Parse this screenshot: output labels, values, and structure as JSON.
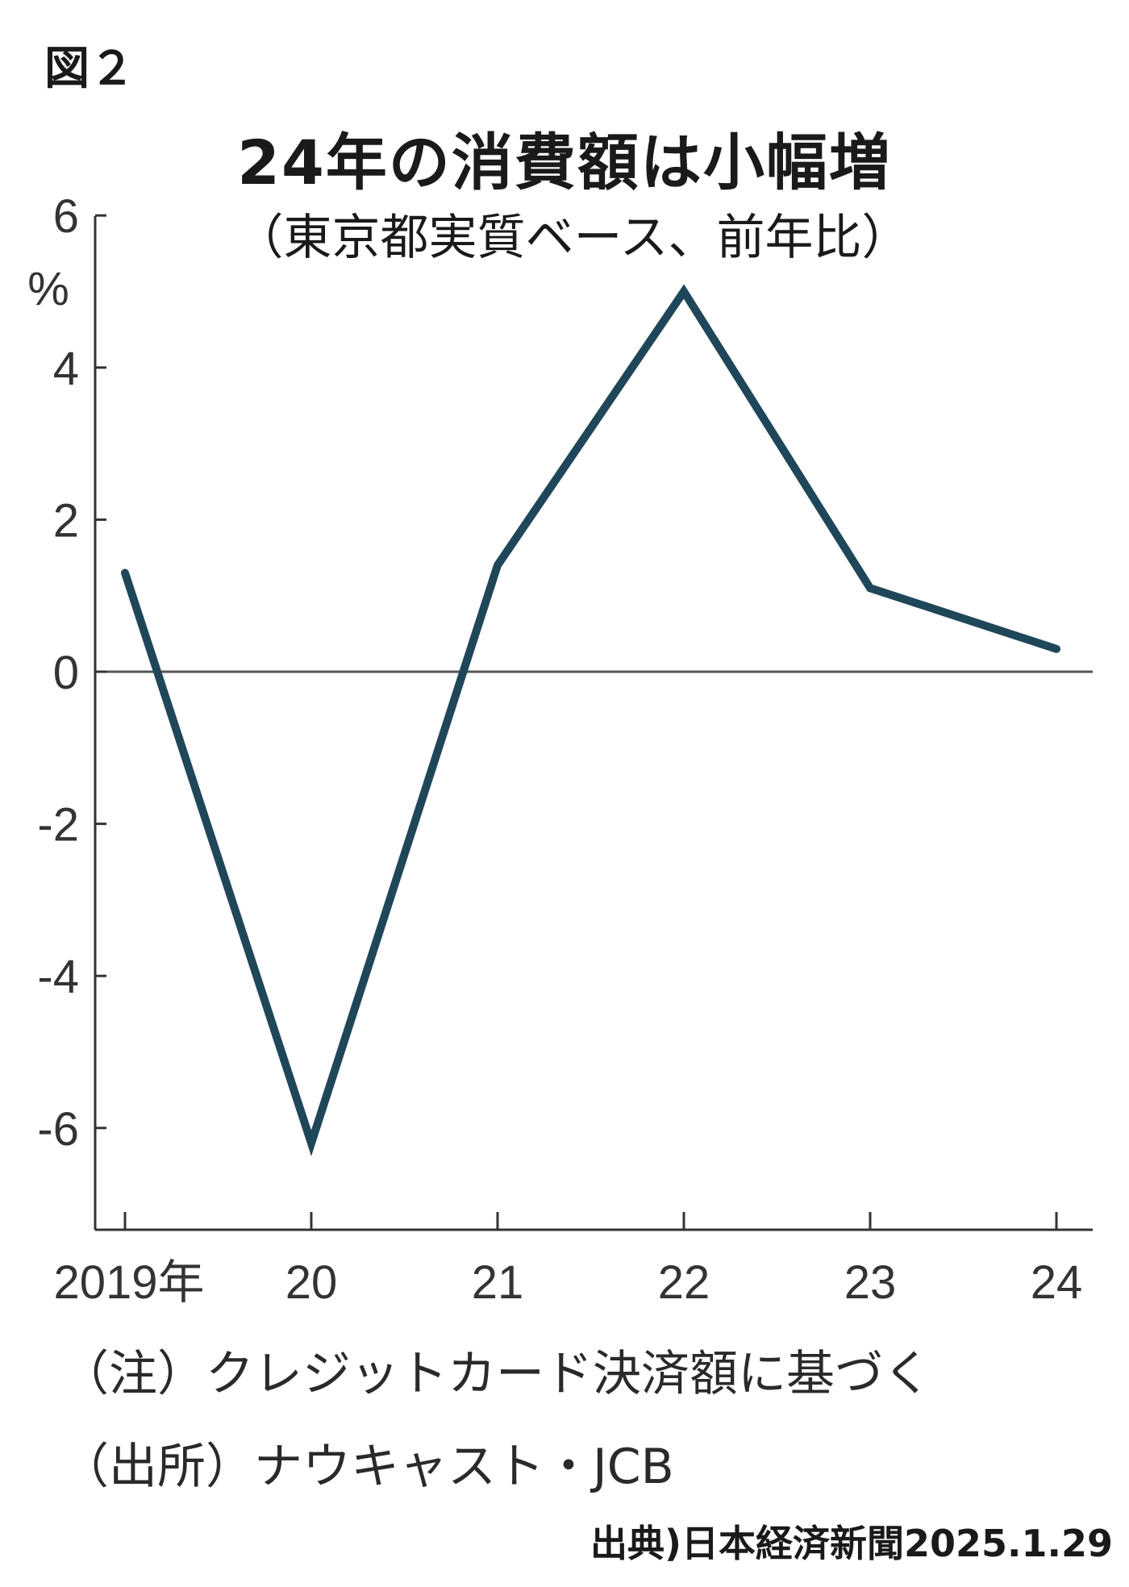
{
  "figure_label": "図２",
  "footer": {
    "note": "（注）クレジットカード決済額に基づく",
    "source": "（出所）ナウキャスト・JCB",
    "credit": "出典)日本経済新聞2025.1.29"
  },
  "colors": {
    "line": "#1f4759",
    "axis": "#333333",
    "text": "#1a1a1a",
    "background": "#ffffff"
  },
  "chart_data": {
    "type": "line",
    "title": "24年の消費額は小幅増",
    "subtitle": "（東京都実質ベース、前年比）",
    "unit_label": "%",
    "categories": [
      "2019年",
      "20",
      "21",
      "22",
      "23",
      "24"
    ],
    "series": [
      {
        "values": [
          1.3,
          -6.2,
          1.4,
          5.0,
          1.1,
          0.3
        ]
      }
    ],
    "y_ticks": [
      6,
      4,
      2,
      0,
      -2,
      -4,
      -6
    ],
    "y_tick_labels": [
      "6",
      "4",
      "2",
      "0",
      "-2",
      "-4",
      "-6"
    ],
    "ylim": [
      -7.3,
      6
    ],
    "grid": false,
    "zero_line": true,
    "legend": "none"
  }
}
